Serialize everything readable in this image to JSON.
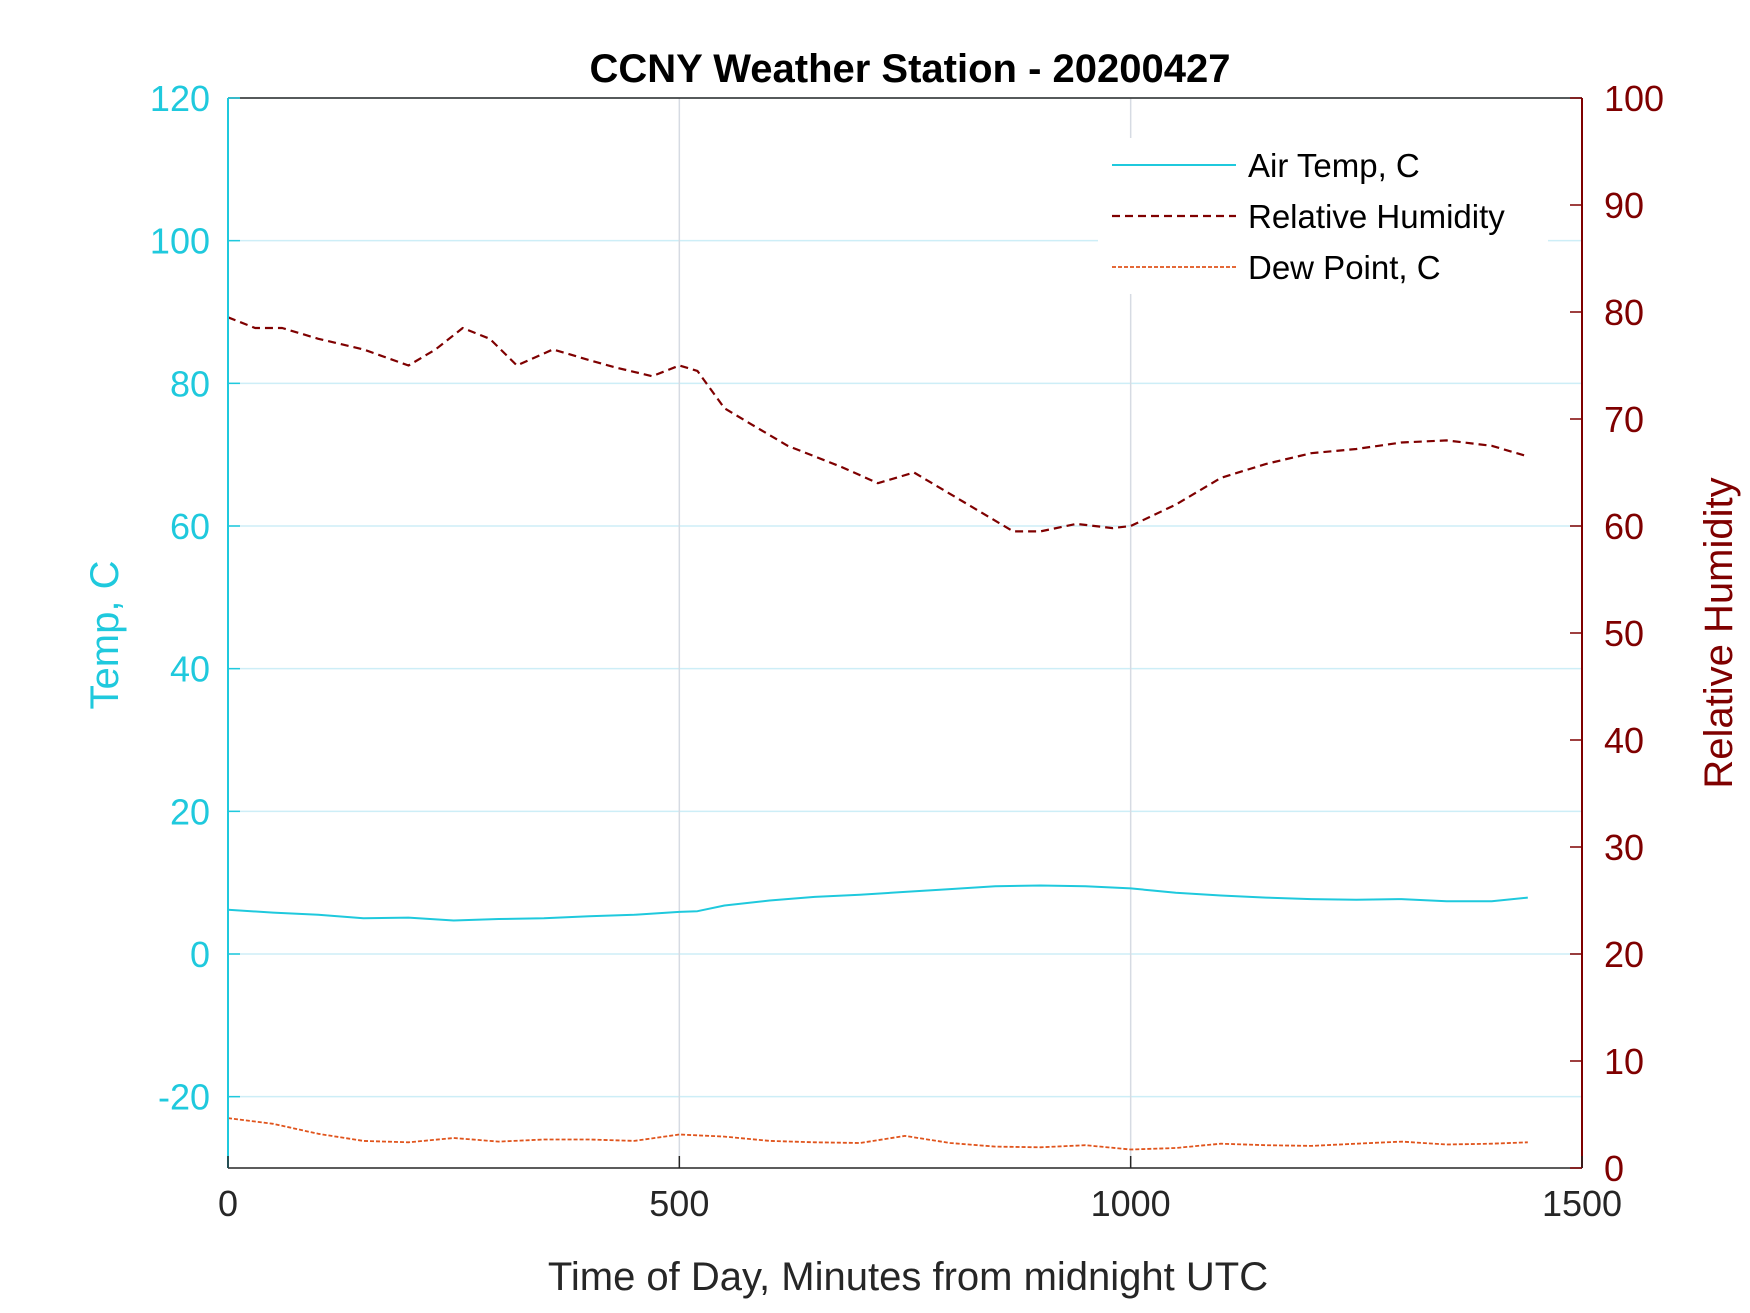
{
  "chart_data": {
    "type": "line",
    "title": "CCNY Weather Station - 20200427",
    "xlabel": "Time of Day, Minutes from midnight UTC",
    "ylabel_left": "Temp, C",
    "ylabel_right": "Relative Humidity",
    "xlim": [
      0,
      1500
    ],
    "ylim_left": [
      -30,
      120
    ],
    "ylim_right": [
      0,
      100
    ],
    "xticks": [
      0,
      500,
      1000,
      1500
    ],
    "yticks_left": [
      -20,
      0,
      20,
      40,
      60,
      80,
      100,
      120
    ],
    "yticks_right": [
      0,
      10,
      20,
      30,
      40,
      50,
      60,
      70,
      80,
      90,
      100
    ],
    "grid": true,
    "legend_position": "top-right",
    "colors": {
      "left_axis": "#1fc9dd",
      "right_axis": "#7f0000",
      "temp": "#1fc9dd",
      "humidity": "#7f0000",
      "dewpoint": "#e0541c",
      "grid_h": "#cdeef7",
      "grid_v": "#d6dbe3"
    },
    "series": [
      {
        "name": "Air Temp, C",
        "axis": "left",
        "style": "solid",
        "x": [
          0,
          50,
          100,
          150,
          200,
          250,
          300,
          350,
          400,
          450,
          500,
          520,
          550,
          600,
          650,
          700,
          750,
          800,
          850,
          900,
          950,
          1000,
          1050,
          1100,
          1150,
          1200,
          1250,
          1300,
          1350,
          1400,
          1440
        ],
        "y": [
          6.2,
          5.8,
          5.5,
          5.0,
          5.1,
          4.7,
          4.9,
          5.0,
          5.3,
          5.5,
          5.9,
          6.0,
          6.8,
          7.5,
          8.0,
          8.3,
          8.7,
          9.1,
          9.5,
          9.6,
          9.5,
          9.2,
          8.6,
          8.2,
          7.9,
          7.7,
          7.6,
          7.7,
          7.4,
          7.4,
          7.9
        ]
      },
      {
        "name": "Relative Humidity",
        "axis": "right",
        "style": "dashed",
        "x": [
          0,
          30,
          60,
          100,
          150,
          200,
          230,
          260,
          290,
          320,
          360,
          400,
          430,
          470,
          500,
          520,
          550,
          580,
          620,
          680,
          720,
          760,
          800,
          830,
          870,
          900,
          940,
          980,
          1000,
          1050,
          1100,
          1150,
          1200,
          1250,
          1300,
          1350,
          1400,
          1440
        ],
        "y": [
          79.5,
          78.5,
          78.5,
          77.5,
          76.5,
          75.0,
          76.5,
          78.5,
          77.5,
          75.0,
          76.5,
          75.5,
          74.8,
          74.0,
          75.0,
          74.5,
          71.0,
          69.5,
          67.5,
          65.5,
          64.0,
          65.0,
          63.0,
          61.5,
          59.5,
          59.5,
          60.2,
          59.8,
          60.0,
          62.0,
          64.5,
          65.8,
          66.8,
          67.2,
          67.8,
          68.0,
          67.5,
          66.5
        ]
      },
      {
        "name": "Dew Point, C",
        "axis": "left",
        "style": "dashed",
        "x": [
          0,
          50,
          100,
          150,
          200,
          250,
          300,
          350,
          400,
          450,
          500,
          550,
          600,
          650,
          700,
          750,
          800,
          850,
          900,
          950,
          1000,
          1050,
          1100,
          1150,
          1200,
          1250,
          1300,
          1350,
          1400,
          1440
        ],
        "y": [
          -23.0,
          -23.8,
          -25.2,
          -26.2,
          -26.4,
          -25.8,
          -26.3,
          -26.0,
          -26.0,
          -26.2,
          -25.3,
          -25.6,
          -26.2,
          -26.4,
          -26.5,
          -25.5,
          -26.5,
          -27.0,
          -27.1,
          -26.8,
          -27.4,
          -27.2,
          -26.6,
          -26.8,
          -26.9,
          -26.6,
          -26.3,
          -26.7,
          -26.6,
          -26.4
        ]
      }
    ]
  }
}
